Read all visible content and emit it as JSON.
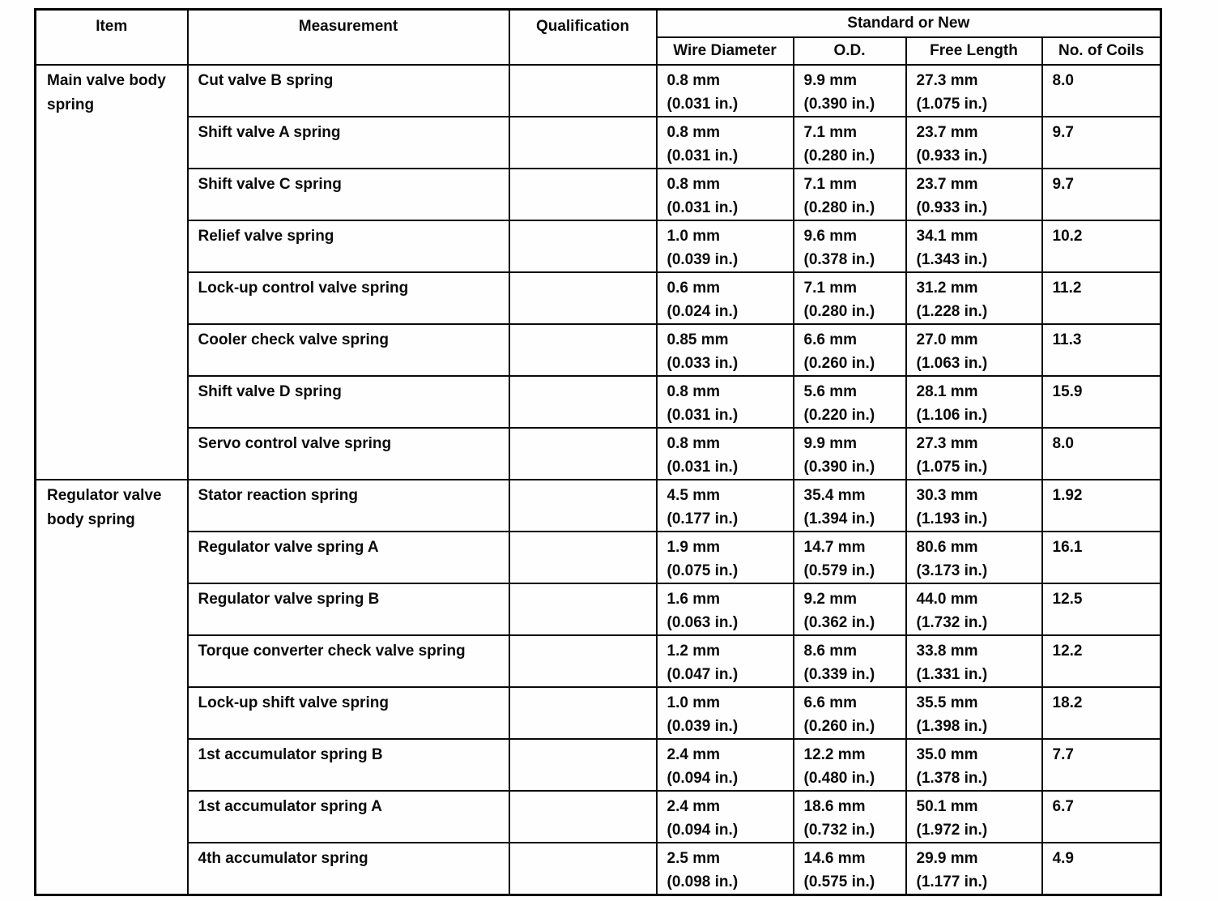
{
  "table": {
    "border_color": "#000000",
    "background_color": "#fefefe",
    "headers": {
      "item": "Item",
      "measurement": "Measurement",
      "qualification": "Qualification",
      "standard_or_new": "Standard or New",
      "wire_diameter": "Wire Diameter",
      "od": "O.D.",
      "free_length": "Free Length",
      "no_of_coils": "No. of Coils"
    },
    "groups": [
      {
        "item": "Main valve body spring",
        "rows": [
          {
            "measurement": "Cut valve B spring",
            "qualification": "",
            "wire_diameter": [
              "0.8 mm",
              "(0.031 in.)"
            ],
            "od": [
              "9.9 mm",
              "(0.390 in.)"
            ],
            "free_length": [
              "27.3 mm",
              "(1.075 in.)"
            ],
            "no_of_coils": "8.0"
          },
          {
            "measurement": "Shift valve A spring",
            "qualification": "",
            "wire_diameter": [
              "0.8 mm",
              "(0.031 in.)"
            ],
            "od": [
              "7.1 mm",
              "(0.280 in.)"
            ],
            "free_length": [
              "23.7 mm",
              "(0.933 in.)"
            ],
            "no_of_coils": "9.7"
          },
          {
            "measurement": "Shift valve C spring",
            "qualification": "",
            "wire_diameter": [
              "0.8 mm",
              "(0.031 in.)"
            ],
            "od": [
              "7.1 mm",
              "(0.280 in.)"
            ],
            "free_length": [
              "23.7 mm",
              "(0.933 in.)"
            ],
            "no_of_coils": "9.7"
          },
          {
            "measurement": "Relief valve spring",
            "qualification": "",
            "wire_diameter": [
              "1.0 mm",
              "(0.039 in.)"
            ],
            "od": [
              "9.6 mm",
              "(0.378 in.)"
            ],
            "free_length": [
              "34.1 mm",
              "(1.343 in.)"
            ],
            "no_of_coils": "10.2"
          },
          {
            "measurement": "Lock-up control valve spring",
            "qualification": "",
            "wire_diameter": [
              "0.6 mm",
              "(0.024 in.)"
            ],
            "od": [
              "7.1 mm",
              "(0.280 in.)"
            ],
            "free_length": [
              "31.2 mm",
              "(1.228 in.)"
            ],
            "no_of_coils": "11.2"
          },
          {
            "measurement": "Cooler check valve spring",
            "qualification": "",
            "wire_diameter": [
              "0.85 mm",
              "(0.033 in.)"
            ],
            "od": [
              "6.6 mm",
              "(0.260 in.)"
            ],
            "free_length": [
              "27.0 mm",
              "(1.063 in.)"
            ],
            "no_of_coils": "11.3"
          },
          {
            "measurement": "Shift valve D spring",
            "qualification": "",
            "wire_diameter": [
              "0.8 mm",
              "(0.031 in.)"
            ],
            "od": [
              "5.6 mm",
              "(0.220 in.)"
            ],
            "free_length": [
              "28.1 mm",
              "(1.106 in.)"
            ],
            "no_of_coils": "15.9"
          },
          {
            "measurement": "Servo control valve spring",
            "qualification": "",
            "wire_diameter": [
              "0.8 mm",
              "(0.031 in.)"
            ],
            "od": [
              "9.9 mm",
              "(0.390 in.)"
            ],
            "free_length": [
              "27.3 mm",
              "(1.075 in.)"
            ],
            "no_of_coils": "8.0"
          }
        ]
      },
      {
        "item": "Regulator valve body spring",
        "rows": [
          {
            "measurement": "Stator reaction spring",
            "qualification": "",
            "wire_diameter": [
              "4.5 mm",
              "(0.177 in.)"
            ],
            "od": [
              "35.4 mm",
              "(1.394 in.)"
            ],
            "free_length": [
              "30.3 mm",
              "(1.193 in.)"
            ],
            "no_of_coils": "1.92"
          },
          {
            "measurement": "Regulator valve spring A",
            "qualification": "",
            "wire_diameter": [
              "1.9 mm",
              "(0.075 in.)"
            ],
            "od": [
              "14.7 mm",
              "(0.579 in.)"
            ],
            "free_length": [
              "80.6 mm",
              "(3.173 in.)"
            ],
            "no_of_coils": "16.1"
          },
          {
            "measurement": "Regulator valve spring B",
            "qualification": "",
            "wire_diameter": [
              "1.6 mm",
              "(0.063 in.)"
            ],
            "od": [
              "9.2 mm",
              "(0.362 in.)"
            ],
            "free_length": [
              "44.0 mm",
              "(1.732 in.)"
            ],
            "no_of_coils": "12.5"
          },
          {
            "measurement": "Torque converter check valve spring",
            "qualification": "",
            "wire_diameter": [
              "1.2 mm",
              "(0.047 in.)"
            ],
            "od": [
              "8.6 mm",
              "(0.339 in.)"
            ],
            "free_length": [
              "33.8 mm",
              "(1.331 in.)"
            ],
            "no_of_coils": "12.2"
          },
          {
            "measurement": "Lock-up shift valve spring",
            "qualification": "",
            "wire_diameter": [
              "1.0 mm",
              "(0.039 in.)"
            ],
            "od": [
              "6.6 mm",
              "(0.260 in.)"
            ],
            "free_length": [
              "35.5 mm",
              "(1.398 in.)"
            ],
            "no_of_coils": "18.2"
          },
          {
            "measurement": "1st accumulator spring B",
            "qualification": "",
            "wire_diameter": [
              "2.4 mm",
              "(0.094 in.)"
            ],
            "od": [
              "12.2 mm",
              "(0.480 in.)"
            ],
            "free_length": [
              "35.0 mm",
              "(1.378 in.)"
            ],
            "no_of_coils": "7.7"
          },
          {
            "measurement": "1st accumulator spring A",
            "qualification": "",
            "wire_diameter": [
              "2.4 mm",
              "(0.094 in.)"
            ],
            "od": [
              "18.6 mm",
              "(0.732 in.)"
            ],
            "free_length": [
              "50.1 mm",
              "(1.972 in.)"
            ],
            "no_of_coils": "6.7"
          },
          {
            "measurement": "4th accumulator spring",
            "qualification": "",
            "wire_diameter": [
              "2.5 mm",
              "(0.098 in.)"
            ],
            "od": [
              "14.6 mm",
              "(0.575 in.)"
            ],
            "free_length": [
              "29.9 mm",
              "(1.177 in.)"
            ],
            "no_of_coils": "4.9"
          }
        ]
      }
    ]
  }
}
